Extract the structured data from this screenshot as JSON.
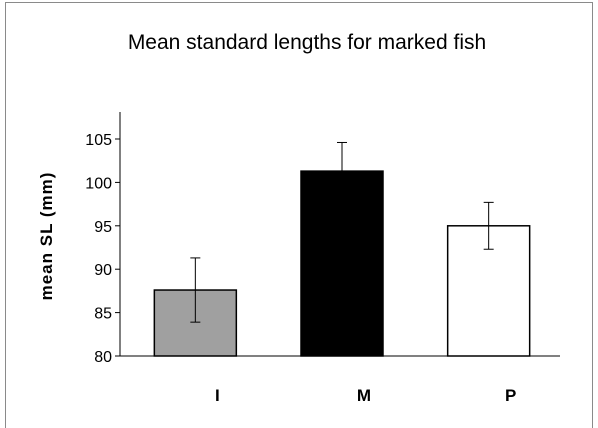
{
  "chart_data": {
    "type": "bar",
    "title": "Mean standard lengths for marked fish",
    "xlabel": "",
    "ylabel": "mean SL (mm)",
    "categories": [
      "I",
      "M",
      "P"
    ],
    "values": [
      87.6,
      101.3,
      95.0
    ],
    "error": [
      3.7,
      3.3,
      2.7
    ],
    "bar_colors": [
      "#a0a0a0",
      "#000000",
      "#ffffff"
    ],
    "ylim": [
      80,
      105
    ],
    "yticks": [
      80,
      85,
      90,
      95,
      100,
      105
    ],
    "grid": false,
    "legend": "none"
  }
}
